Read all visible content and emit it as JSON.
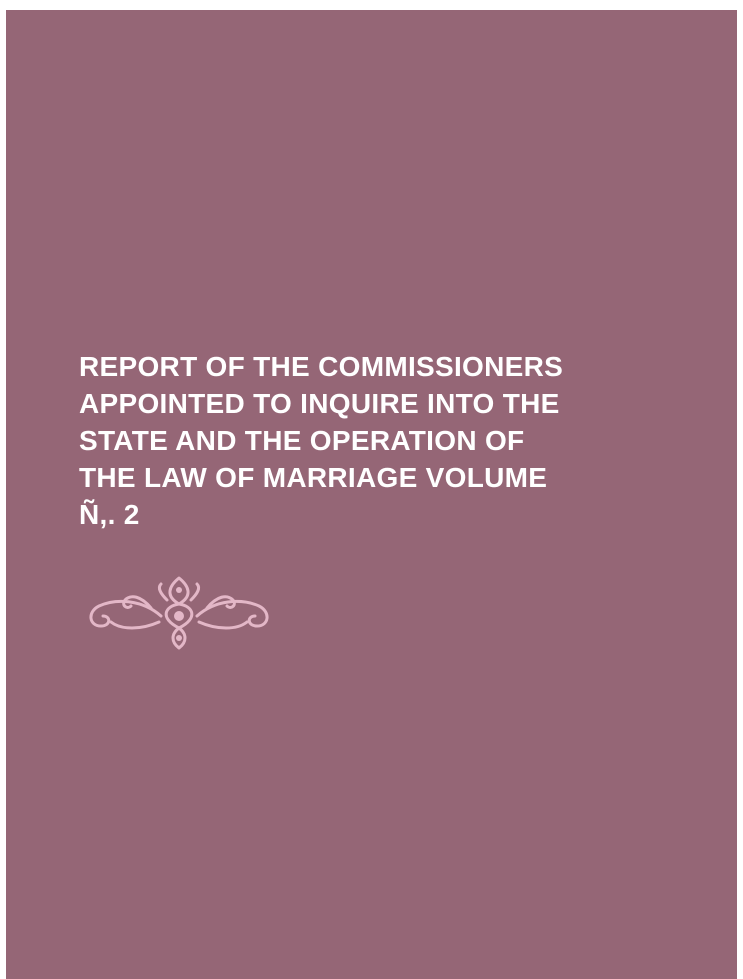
{
  "book": {
    "title_lines": [
      "REPORT OF THE COMMISSIONERS",
      "APPOINTED TO INQUIRE INTO THE",
      "STATE AND THE OPERATION OF",
      "THE LAW OF MARRIAGE VOLUME",
      "Ñ,. 2"
    ],
    "cover_color": "#956676",
    "text_color": "#ffffff",
    "ornament_color": "#e3b7c7",
    "ornament_icon": "floral-scroll-ornament-icon"
  }
}
